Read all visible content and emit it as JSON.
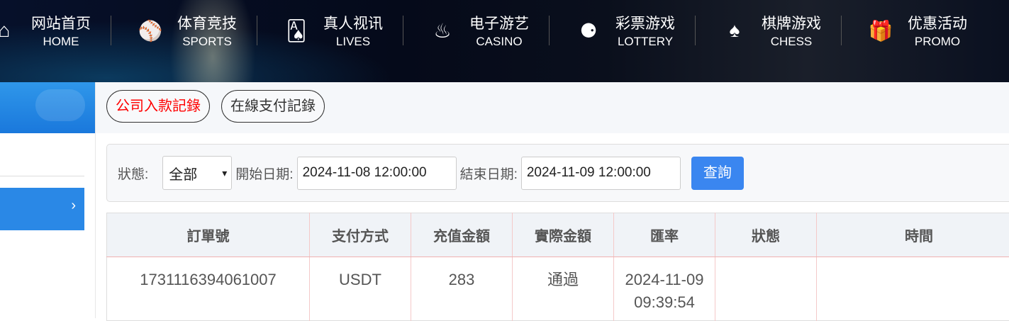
{
  "nav": [
    {
      "cn": "网站首页",
      "en": "HOME",
      "icon": "home-icon",
      "glyph": "⌂"
    },
    {
      "cn": "体育竞技",
      "en": "SPORTS",
      "icon": "ball-icon",
      "glyph": "⚾"
    },
    {
      "cn": "真人视讯",
      "en": "LIVES",
      "icon": "cards-icon",
      "glyph": "🂡"
    },
    {
      "cn": "电子游艺",
      "en": "CASINO",
      "icon": "roulette-icon",
      "glyph": "♨"
    },
    {
      "cn": "彩票游戏",
      "en": "LOTTERY",
      "icon": "lottery-balls-icon",
      "glyph": "⚈"
    },
    {
      "cn": "棋牌游戏",
      "en": "CHESS",
      "icon": "spade-icon",
      "glyph": "♠"
    },
    {
      "cn": "优惠活动",
      "en": "PROMO",
      "icon": "gift-icon",
      "glyph": "🎁"
    }
  ],
  "sidebar": {
    "item_chevron": "›"
  },
  "tabs": [
    {
      "label": "公司入款記錄",
      "active": true
    },
    {
      "label": "在線支付記錄",
      "active": false
    }
  ],
  "filter": {
    "status_label": "狀態:",
    "status_value": "全部",
    "start_label": "開始日期:",
    "start_value": "2024-11-08 12:00:00",
    "end_label": "結束日期:",
    "end_value": "2024-11-09 12:00:00",
    "query": "查詢"
  },
  "table": {
    "headers": [
      "訂單號",
      "支付方式",
      "充值金額",
      "實際金額",
      "匯率",
      "狀態",
      "時間"
    ],
    "rows": [
      [
        "1731116394061007",
        "USDT",
        "283",
        "通過",
        "2024-11-09 09:39:54",
        "",
        ""
      ]
    ]
  },
  "colors": {
    "accent": "#3a86f0",
    "active_tab": "#ff0000"
  }
}
